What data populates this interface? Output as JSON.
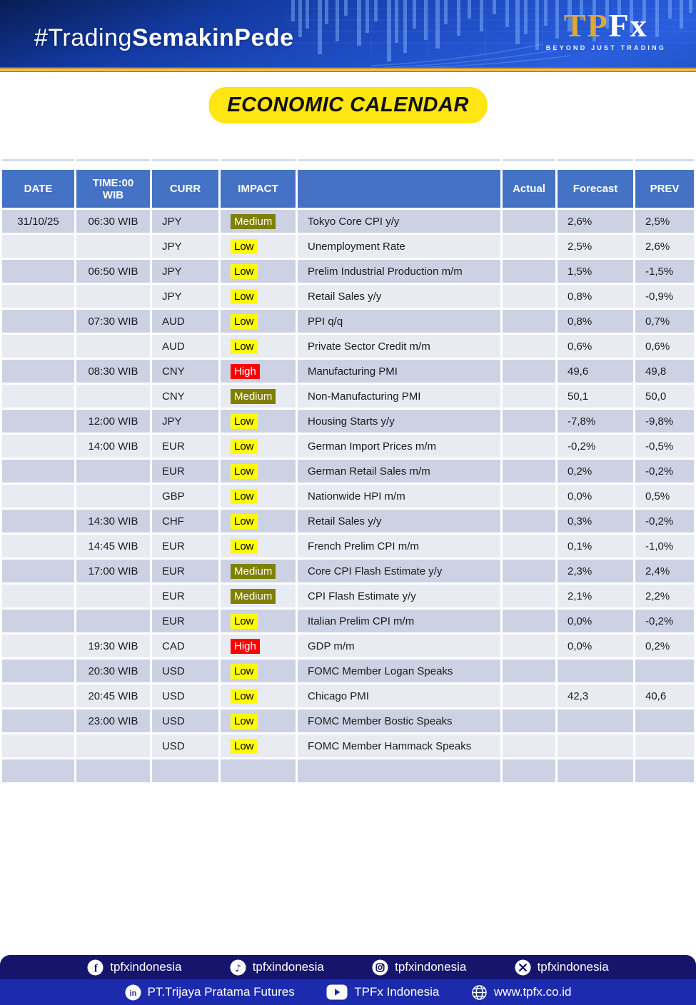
{
  "banner": {
    "hashtag_light": "#Trading",
    "hashtag_bold": "SemakinPede",
    "logo_gold": "TP",
    "logo_white": "Fx",
    "logo_tagline": "BEYOND JUST TRADING"
  },
  "title_badge": {
    "label": "ECONOMIC CALENDAR",
    "bg": "#FFE512"
  },
  "table": {
    "columns": [
      "DATE",
      "TIME:00 WIB",
      "CURR",
      "IMPACT",
      "",
      "Actual",
      "Forecast",
      "PREV"
    ],
    "header_bg": "#4472C4",
    "row_colors": {
      "dark": "#CCD2E3",
      "light": "#E9EBF3"
    },
    "impact_styles": {
      "Low": {
        "bg": "#FFFF00",
        "fg": "#000000"
      },
      "Medium": {
        "bg": "#7F7F00",
        "fg": "#FFFFFF"
      },
      "High": {
        "bg": "#FF0000",
        "fg": "#FFFFFF"
      }
    },
    "rows": [
      {
        "date": "31/10/25",
        "time": "06:30 WIB",
        "curr": "JPY",
        "impact": "Medium",
        "event": "Tokyo Core CPI y/y",
        "actual": "",
        "forecast": "2,6%",
        "prev": "2,5%"
      },
      {
        "date": "",
        "time": "",
        "curr": "JPY",
        "impact": "Low",
        "event": "Unemployment Rate",
        "actual": "",
        "forecast": "2,5%",
        "prev": "2,6%"
      },
      {
        "date": "",
        "time": "06:50 WIB",
        "curr": "JPY",
        "impact": "Low",
        "event": "Prelim Industrial Production m/m",
        "actual": "",
        "forecast": "1,5%",
        "prev": "-1,5%"
      },
      {
        "date": "",
        "time": "",
        "curr": "JPY",
        "impact": "Low",
        "event": "Retail Sales y/y",
        "actual": "",
        "forecast": "0,8%",
        "prev": "-0,9%"
      },
      {
        "date": "",
        "time": "07:30 WIB",
        "curr": "AUD",
        "impact": "Low",
        "event": "PPI q/q",
        "actual": "",
        "forecast": "0,8%",
        "prev": "0,7%"
      },
      {
        "date": "",
        "time": "",
        "curr": "AUD",
        "impact": "Low",
        "event": "Private Sector Credit m/m",
        "actual": "",
        "forecast": "0,6%",
        "prev": "0,6%"
      },
      {
        "date": "",
        "time": "08:30 WIB",
        "curr": "CNY",
        "impact": "High",
        "event": "Manufacturing PMI",
        "actual": "",
        "forecast": "49,6",
        "prev": "49,8"
      },
      {
        "date": "",
        "time": "",
        "curr": "CNY",
        "impact": "Medium",
        "event": "Non-Manufacturing PMI",
        "actual": "",
        "forecast": "50,1",
        "prev": "50,0"
      },
      {
        "date": "",
        "time": "12:00 WIB",
        "curr": "JPY",
        "impact": "Low",
        "event": "Housing Starts y/y",
        "actual": "",
        "forecast": "-7,8%",
        "prev": "-9,8%"
      },
      {
        "date": "",
        "time": "14:00 WIB",
        "curr": "EUR",
        "impact": "Low",
        "event": "German Import Prices m/m",
        "actual": "",
        "forecast": "-0,2%",
        "prev": "-0,5%"
      },
      {
        "date": "",
        "time": "",
        "curr": "EUR",
        "impact": "Low",
        "event": "German Retail Sales m/m",
        "actual": "",
        "forecast": "0,2%",
        "prev": "-0,2%"
      },
      {
        "date": "",
        "time": "",
        "curr": "GBP",
        "impact": "Low",
        "event": "Nationwide HPI m/m",
        "actual": "",
        "forecast": "0,0%",
        "prev": "0,5%"
      },
      {
        "date": "",
        "time": "14:30 WIB",
        "curr": "CHF",
        "impact": "Low",
        "event": "Retail Sales y/y",
        "actual": "",
        "forecast": "0,3%",
        "prev": "-0,2%"
      },
      {
        "date": "",
        "time": "14:45 WIB",
        "curr": "EUR",
        "impact": "Low",
        "event": "French Prelim CPI m/m",
        "actual": "",
        "forecast": "0,1%",
        "prev": "-1,0%"
      },
      {
        "date": "",
        "time": "17:00 WIB",
        "curr": "EUR",
        "impact": "Medium",
        "event": "Core CPI Flash Estimate y/y",
        "actual": "",
        "forecast": "2,3%",
        "prev": "2,4%"
      },
      {
        "date": "",
        "time": "",
        "curr": "EUR",
        "impact": "Medium",
        "event": "CPI Flash Estimate y/y",
        "actual": "",
        "forecast": "2,1%",
        "prev": "2,2%"
      },
      {
        "date": "",
        "time": "",
        "curr": "EUR",
        "impact": "Low",
        "event": "Italian Prelim CPI m/m",
        "actual": "",
        "forecast": "0,0%",
        "prev": "-0,2%"
      },
      {
        "date": "",
        "time": "19:30 WIB",
        "curr": "CAD",
        "impact": "High",
        "event": "GDP m/m",
        "actual": "",
        "forecast": "0,0%",
        "prev": "0,2%"
      },
      {
        "date": "",
        "time": "20:30 WIB",
        "curr": "USD",
        "impact": "Low",
        "event": "FOMC Member Logan Speaks",
        "actual": "",
        "forecast": "",
        "prev": ""
      },
      {
        "date": "",
        "time": "20:45 WIB",
        "curr": "USD",
        "impact": "Low",
        "event": "Chicago PMI",
        "actual": "",
        "forecast": "42,3",
        "prev": "40,6"
      },
      {
        "date": "",
        "time": "23:00 WIB",
        "curr": "USD",
        "impact": "Low",
        "event": "FOMC Member Bostic Speaks",
        "actual": "",
        "forecast": "",
        "prev": ""
      },
      {
        "date": "",
        "time": "",
        "curr": "USD",
        "impact": "Low",
        "event": "FOMC Member Hammack Speaks",
        "actual": "",
        "forecast": "",
        "prev": ""
      },
      {
        "date": "",
        "time": "",
        "curr": "",
        "impact": "",
        "event": "",
        "actual": "",
        "forecast": "",
        "prev": ""
      }
    ]
  },
  "footer": {
    "row1": [
      {
        "icon": "facebook-icon",
        "label": "tpfxindonesia"
      },
      {
        "icon": "tiktok-icon",
        "label": "tpfxindonesia"
      },
      {
        "icon": "instagram-icon",
        "label": "tpfxindonesia"
      },
      {
        "icon": "x-icon",
        "label": "tpfxindonesia"
      }
    ],
    "row2": [
      {
        "icon": "linkedin-icon",
        "label": "PT.Trijaya Pratama Futures"
      },
      {
        "icon": "youtube-icon",
        "label": "TPFx Indonesia"
      },
      {
        "icon": "globe-icon",
        "label": "www.tpfx.co.id"
      }
    ],
    "row1_bg": "#15156B",
    "row2_bg": "#1C2BAD"
  }
}
